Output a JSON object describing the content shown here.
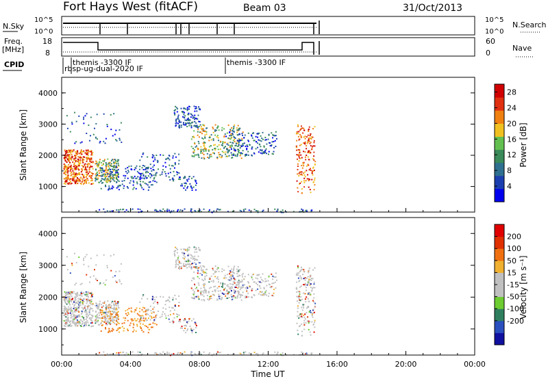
{
  "header": {
    "station": "Fort Hays West (fitACF)",
    "beam": "Beam 03",
    "date": "31/Oct/2013"
  },
  "panels": {
    "nsky_label": "N.Sky",
    "nsky_ticks": [
      "10^5",
      "10^0"
    ],
    "nsearch_label": "N.Search",
    "nsearch_ticks": [
      "10^5",
      "10^0"
    ],
    "freq_label": "Freq.",
    "freq_unit": "[MHz]",
    "freq_ticks": [
      "18",
      "8"
    ],
    "nave_label": "Nave",
    "nave_ticks": [
      "60",
      "0"
    ],
    "cpid_label": "CPID",
    "cpid_entries": [
      "themis -3300 IF",
      "rbsp-ug-dual-2020 IF",
      "themis -3300 IF"
    ]
  },
  "chart_data": [
    {
      "type": "heatmap",
      "ylabel": "Slant Range [km]",
      "yticks": [
        1000,
        2000,
        3000,
        4000
      ],
      "ylim": [
        180,
        4500
      ],
      "xlim": [
        0,
        24
      ],
      "colorbar_label": "Power [dB]",
      "colorbar_ticks": [
        4,
        8,
        12,
        16,
        20,
        24,
        28
      ],
      "colorbar_colors": [
        "#0000ee",
        "#1c3fb0",
        "#2f6f8f",
        "#3a8a5a",
        "#63c050",
        "#f0c020",
        "#f08010",
        "#e03010",
        "#d00000"
      ],
      "colorbar_range": [
        0,
        30
      ]
    },
    {
      "type": "heatmap",
      "ylabel": "Slant Range [km]",
      "yticks": [
        1000,
        2000,
        3000,
        4000
      ],
      "ylim": [
        180,
        4500
      ],
      "xlim": [
        0,
        24
      ],
      "xlabel": "Time UT",
      "xticks": [
        "00:00",
        "04:00",
        "08:00",
        "12:00",
        "16:00",
        "20:00",
        "00:00"
      ],
      "colorbar_label": "Velocity [m s⁻¹]",
      "colorbar_ticks": [
        "200",
        "100",
        "50",
        "15",
        "-15",
        "-50",
        "-100",
        "-200"
      ],
      "colorbar_colors": [
        "#1010a0",
        "#2a4fbf",
        "#2f7f5f",
        "#6ccc30",
        "#c0c0c0",
        "#c0c0c0",
        "#f0b030",
        "#f07010",
        "#e03000",
        "#e00000"
      ]
    }
  ]
}
